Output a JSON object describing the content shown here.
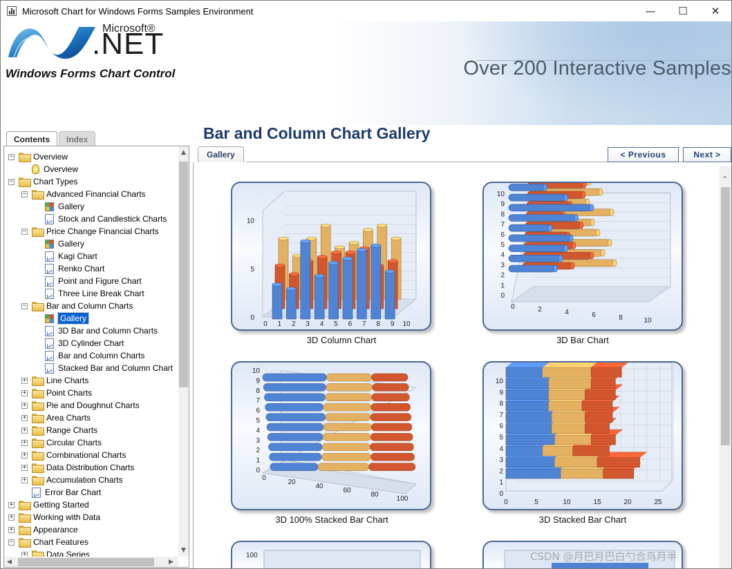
{
  "window": {
    "title": "Microsoft Chart for Windows Forms Samples Environment",
    "controls": {
      "minimize": "—",
      "maximize": "☐",
      "close": "✕"
    }
  },
  "banner": {
    "brand_small": "Microsoft®",
    "brand_big": ".NET",
    "subtitle": "Windows Forms Chart Control",
    "tagline": "Over 200 Interactive Samples"
  },
  "nav_tabs": [
    "Contents",
    "Index"
  ],
  "tree": [
    {
      "level": 0,
      "type": "folder",
      "expander": "−",
      "label": "Overview"
    },
    {
      "level": 1,
      "type": "bulb",
      "label": "Overview"
    },
    {
      "level": 0,
      "type": "folder",
      "expander": "−",
      "label": "Chart Types"
    },
    {
      "level": 1,
      "type": "folder",
      "expander": "−",
      "label": "Advanced Financial Charts"
    },
    {
      "level": 2,
      "type": "gallery",
      "label": "Gallery"
    },
    {
      "level": 2,
      "type": "page",
      "label": "Stock and Candlestick Charts"
    },
    {
      "level": 1,
      "type": "folder",
      "expander": "−",
      "label": "Price Change Financial Charts"
    },
    {
      "level": 2,
      "type": "gallery",
      "label": "Gallery"
    },
    {
      "level": 2,
      "type": "page",
      "label": "Kagi Chart"
    },
    {
      "level": 2,
      "type": "page",
      "label": "Renko Chart"
    },
    {
      "level": 2,
      "type": "page",
      "label": "Point and Figure Chart"
    },
    {
      "level": 2,
      "type": "page",
      "label": "Three Line Break Chart"
    },
    {
      "level": 1,
      "type": "folder",
      "expander": "−",
      "label": "Bar and Column Charts"
    },
    {
      "level": 2,
      "type": "gallery",
      "label": "Gallery",
      "selected": true
    },
    {
      "level": 2,
      "type": "page",
      "label": "3D Bar and Column Charts"
    },
    {
      "level": 2,
      "type": "page",
      "label": "3D Cylinder Chart"
    },
    {
      "level": 2,
      "type": "page",
      "label": "Bar and Column Charts"
    },
    {
      "level": 2,
      "type": "page",
      "label": "Stacked Bar and Column Chart"
    },
    {
      "level": 1,
      "type": "folder",
      "expander": "+",
      "label": "Line Charts"
    },
    {
      "level": 1,
      "type": "folder",
      "expander": "+",
      "label": "Point Charts"
    },
    {
      "level": 1,
      "type": "folder",
      "expander": "+",
      "label": "Pie and Doughnut Charts"
    },
    {
      "level": 1,
      "type": "folder",
      "expander": "+",
      "label": "Area Charts"
    },
    {
      "level": 1,
      "type": "folder",
      "expander": "+",
      "label": "Range Charts"
    },
    {
      "level": 1,
      "type": "folder",
      "expander": "+",
      "label": "Circular Charts"
    },
    {
      "level": 1,
      "type": "folder",
      "expander": "+",
      "label": "Combinational Charts"
    },
    {
      "level": 1,
      "type": "folder",
      "expander": "+",
      "label": "Data Distribution Charts"
    },
    {
      "level": 1,
      "type": "folder",
      "expander": "+",
      "label": "Accumulation Charts"
    },
    {
      "level": 1,
      "type": "page",
      "label": "Error Bar Chart"
    },
    {
      "level": 0,
      "type": "folder",
      "expander": "+",
      "label": "Getting Started"
    },
    {
      "level": 0,
      "type": "folder",
      "expander": "+",
      "label": "Working with Data"
    },
    {
      "level": 0,
      "type": "folder",
      "expander": "+",
      "label": "Appearance"
    },
    {
      "level": 0,
      "type": "folder",
      "expander": "−",
      "label": "Chart Features"
    },
    {
      "level": 1,
      "type": "folder",
      "expander": "+",
      "label": "Data Series"
    }
  ],
  "content": {
    "title": "Bar and Column Chart Gallery",
    "tab": "Gallery",
    "prev_label": "<  Previous",
    "next_label": "Next  >"
  },
  "gallery": [
    {
      "caption": "3D Column Chart",
      "kind": "column3d"
    },
    {
      "caption": "3D Bar Chart",
      "kind": "bar3d"
    },
    {
      "caption": "3D 100% Stacked Bar Chart",
      "kind": "stacked100"
    },
    {
      "caption": "3D Stacked Bar Chart",
      "kind": "stacked"
    }
  ],
  "thumbs": {
    "column3d": {
      "yticks": [
        "10",
        "5",
        "0"
      ],
      "xticks": [
        "0",
        "1",
        "2",
        "3",
        "4",
        "5",
        "6",
        "7",
        "8",
        "9",
        "10"
      ],
      "blue": [
        8.5,
        4,
        3.5,
        9,
        5,
        6.5,
        7,
        8,
        8.5,
        5.5,
        4
      ],
      "orange": [
        5,
        4,
        5.5,
        6,
        6.5,
        6.5,
        7,
        5,
        5.5
      ],
      "tan": [
        7,
        5,
        7,
        8.5,
        6,
        6.5,
        8,
        8.5,
        7
      ]
    },
    "bar3d": {
      "yticks": [
        "10",
        "9",
        "8",
        "7",
        "6",
        "5",
        "4",
        "3",
        "2",
        "1",
        "0"
      ],
      "xticks": [
        "0",
        "2",
        "4",
        "6",
        "8",
        "10"
      ],
      "blue": [
        4.5,
        5,
        5.5,
        6,
        4,
        6.5,
        8,
        5.5,
        3.5,
        5.5
      ],
      "orange": [
        4,
        5.5,
        4,
        3.5,
        4.5,
        3,
        3.5,
        4.5,
        4.5,
        3
      ],
      "tan": [
        6.5,
        5.5,
        6,
        5,
        4.5,
        6,
        4,
        5,
        4,
        3
      ]
    },
    "stacked100": {
      "yticks": [
        "10",
        "9",
        "8",
        "7",
        "6",
        "5",
        "4",
        "3",
        "2",
        "1",
        "0"
      ],
      "xticks": [
        "0",
        "20",
        "40",
        "60",
        "80",
        "100"
      ],
      "segments": [
        [
          33,
          35,
          32
        ],
        [
          36,
          34,
          30
        ],
        [
          37,
          33,
          30
        ],
        [
          38,
          33,
          29
        ],
        [
          39,
          33,
          28
        ],
        [
          41,
          31,
          28
        ],
        [
          40,
          33,
          27
        ],
        [
          42,
          32,
          26
        ],
        [
          43,
          32,
          25
        ],
        [
          44,
          31,
          25
        ]
      ]
    },
    "stacked": {
      "yticks": [
        "10",
        "9",
        "8",
        "7",
        "6",
        "5",
        "4",
        "3",
        "2",
        "1",
        "0"
      ],
      "xticks": [
        "0",
        "5",
        "10",
        "15",
        "20",
        "25"
      ],
      "segments": [
        [
          9,
          7,
          5
        ],
        [
          8,
          7,
          7
        ],
        [
          6,
          5,
          6
        ],
        [
          8,
          6,
          4
        ],
        [
          7.5,
          5.5,
          4
        ],
        [
          7.5,
          5.5,
          4.5
        ],
        [
          7,
          5.5,
          5
        ],
        [
          7,
          6,
          5
        ],
        [
          7,
          7,
          4
        ],
        [
          6,
          8,
          5
        ]
      ]
    }
  },
  "colors": {
    "blue": "#4f83d3",
    "orange": "#d2562e",
    "tan": "#e4b062",
    "accent": "#1b3a6b",
    "selection": "#0a63cd"
  },
  "watermark": "CSDN @月巴月巴白勺合鸟月半"
}
